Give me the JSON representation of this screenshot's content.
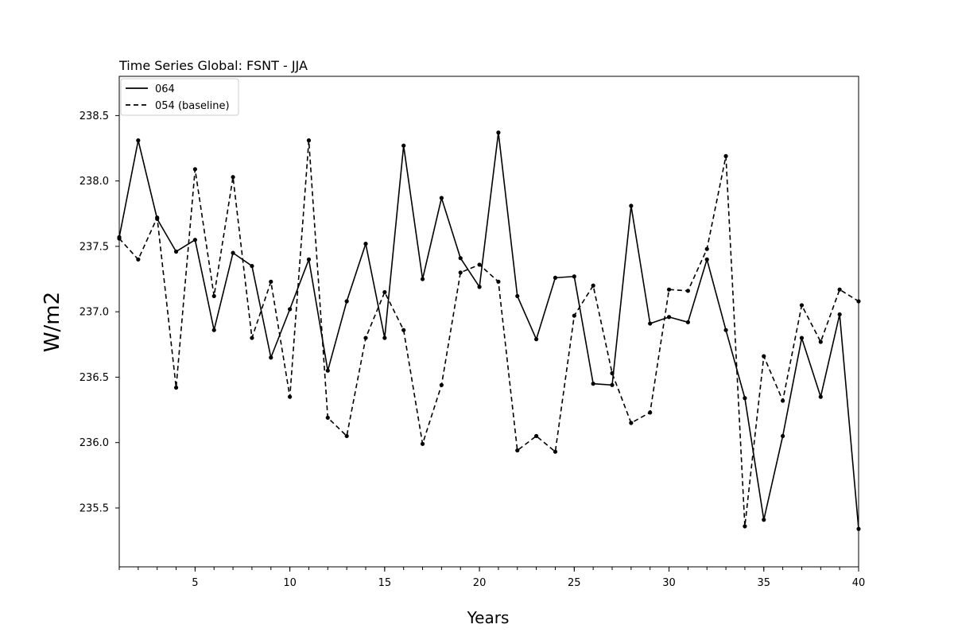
{
  "chart_data": {
    "type": "line",
    "title": "Time Series Global: FSNT - JJA",
    "xlabel": "Years",
    "ylabel": "W/m2",
    "xlim": [
      1,
      40
    ],
    "ylim": [
      235.05,
      238.8
    ],
    "x_ticks": [
      5,
      10,
      15,
      20,
      25,
      30,
      35,
      40
    ],
    "x_minor_ticks": [
      1,
      2,
      3,
      4,
      5,
      6,
      7,
      8,
      9,
      10,
      11,
      12,
      13,
      14,
      15,
      16,
      17,
      18,
      19,
      20,
      21,
      22,
      23,
      24,
      25,
      26,
      27,
      28,
      29,
      30,
      31,
      32,
      33,
      34,
      35,
      36,
      37,
      38,
      39,
      40
    ],
    "y_ticks": [
      235.5,
      236.0,
      236.5,
      237.0,
      237.5,
      238.0,
      238.5
    ],
    "y_tick_labels": [
      "235.5",
      "236.0",
      "236.5",
      "237.0",
      "237.5",
      "238.0",
      "238.5"
    ],
    "grid": false,
    "legend_position": "top-left",
    "x": [
      1,
      2,
      3,
      4,
      5,
      6,
      7,
      8,
      9,
      10,
      11,
      12,
      13,
      14,
      15,
      16,
      17,
      18,
      19,
      20,
      21,
      22,
      23,
      24,
      25,
      26,
      27,
      28,
      29,
      30,
      31,
      32,
      33,
      34,
      35,
      36,
      37,
      38,
      39,
      40
    ],
    "series": [
      {
        "name": "064",
        "line_style": "solid",
        "color": "#000000",
        "values": [
          237.57,
          238.31,
          237.71,
          237.46,
          237.55,
          236.86,
          237.45,
          237.35,
          236.65,
          237.02,
          237.4,
          236.55,
          237.08,
          237.52,
          236.8,
          238.27,
          237.25,
          237.87,
          237.41,
          237.19,
          238.37,
          237.12,
          236.79,
          237.26,
          237.27,
          236.45,
          236.44,
          237.81,
          236.91,
          236.96,
          236.92,
          237.4,
          236.86,
          236.34,
          235.41,
          236.05,
          236.8,
          236.35,
          236.98,
          235.34
        ]
      },
      {
        "name": "054 (baseline)",
        "line_style": "dashed",
        "color": "#000000",
        "values": [
          237.56,
          237.4,
          237.72,
          236.42,
          238.09,
          237.12,
          238.03,
          236.8,
          237.23,
          236.35,
          238.31,
          236.19,
          236.05,
          236.8,
          237.15,
          236.86,
          235.99,
          236.44,
          237.3,
          237.36,
          237.23,
          235.94,
          236.05,
          235.93,
          236.97,
          237.2,
          236.53,
          236.15,
          236.23,
          237.17,
          237.16,
          237.48,
          238.19,
          235.36,
          236.66,
          236.32,
          237.05,
          236.77,
          237.17,
          237.08
        ]
      }
    ]
  }
}
